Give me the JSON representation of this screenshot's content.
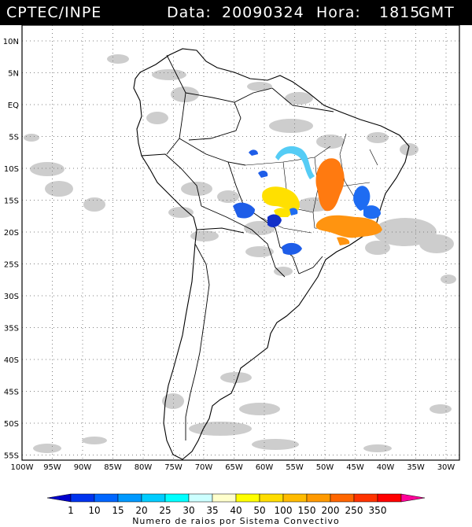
{
  "header": {
    "source": "CPTEC/INPE",
    "date_label": "Data:",
    "date": "20090324",
    "time_label": "Hora:",
    "time": "1815",
    "timezone": "GMT"
  },
  "map": {
    "lat_labels": [
      "10N",
      "5N",
      "EQ",
      "5S",
      "10S",
      "15S",
      "20S",
      "25S",
      "30S",
      "35S",
      "40S",
      "45S",
      "50S",
      "55S"
    ],
    "lon_labels": [
      "100W",
      "95W",
      "90W",
      "85W",
      "80W",
      "75W",
      "70W",
      "65W",
      "60W",
      "55W",
      "50W",
      "45W",
      "40W",
      "35W",
      "30W"
    ],
    "lat_values": [
      10,
      5,
      0,
      -5,
      -10,
      -15,
      -20,
      -25,
      -30,
      -35,
      -40,
      -45,
      -50,
      -55
    ],
    "lon_values": [
      -100,
      -95,
      -90,
      -85,
      -80,
      -75,
      -70,
      -65,
      -60,
      -55,
      -50,
      -45,
      -40,
      -35,
      -30
    ],
    "land_color": "#ffffff",
    "cloud_color": "#c8c8c8",
    "border_color": "#000000"
  },
  "legend": {
    "values": [
      "1",
      "10",
      "15",
      "20",
      "25",
      "30",
      "35",
      "40",
      "50",
      "100",
      "150",
      "200",
      "250",
      "350"
    ],
    "colors": [
      "#0000cc",
      "#0033ee",
      "#0066ff",
      "#0099ff",
      "#00ccff",
      "#00ffff",
      "#ccffff",
      "#ffffcc",
      "#ffff00",
      "#ffdd00",
      "#ffbb00",
      "#ff9900",
      "#ff6600",
      "#ff3300",
      "#ff0000",
      "#ff0099"
    ],
    "caption": "Numero de raios por Sistema Convectivo"
  }
}
